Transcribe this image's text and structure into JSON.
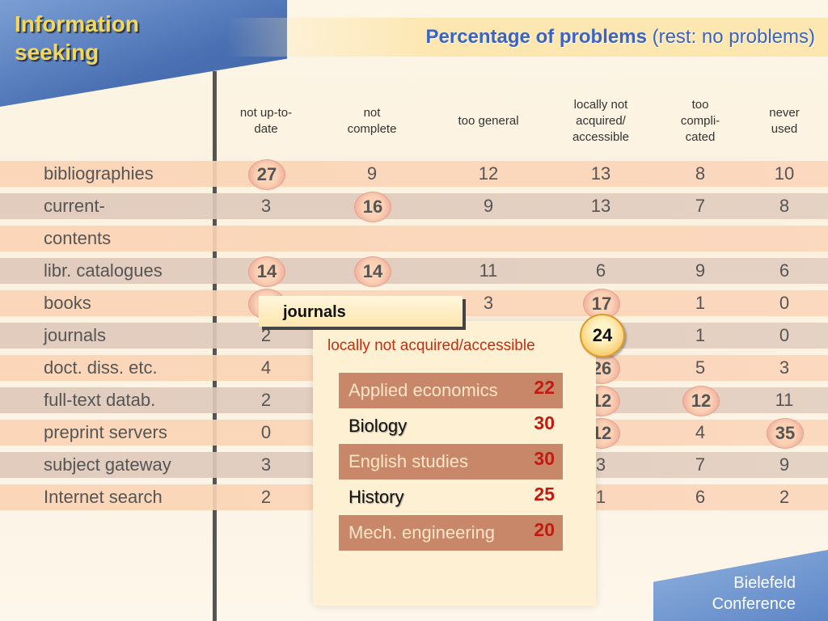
{
  "title": "Information seeking",
  "subtitle": {
    "bold": "Percentage of problems",
    "rest": "(rest: no problems)"
  },
  "columns": [
    {
      "lines": [
        "not up-to-",
        "date"
      ]
    },
    {
      "lines": [
        "not",
        "complete"
      ]
    },
    {
      "lines": [
        "too general"
      ]
    },
    {
      "lines": [
        "locally not",
        "acquired/",
        "accessible"
      ]
    },
    {
      "lines": [
        "too",
        "compli-",
        "cated"
      ]
    },
    {
      "lines": [
        "never",
        "used"
      ]
    }
  ],
  "rows": [
    {
      "label": "bibliographies",
      "values": [
        "27",
        "9",
        "12",
        "13",
        "8",
        "10"
      ],
      "highlight": [
        0
      ]
    },
    {
      "label": "current-",
      "values": [
        "3",
        "16",
        "9",
        "13",
        "7",
        "8"
      ],
      "highlight": [
        1
      ]
    },
    {
      "label": "contents",
      "values": [
        "",
        "",
        "",
        "",
        "",
        ""
      ],
      "highlight": []
    },
    {
      "label": "libr. catalogues",
      "values": [
        "14",
        "14",
        "11",
        "6",
        "9",
        "6"
      ],
      "highlight": [
        0,
        1
      ]
    },
    {
      "label": "books",
      "values": [
        "2",
        "",
        "3",
        "17",
        "1",
        "0"
      ],
      "highlight": [
        0,
        3
      ]
    },
    {
      "label": "journals",
      "values": [
        "2",
        "",
        "",
        "",
        "1",
        "0"
      ],
      "highlight": []
    },
    {
      "label": "doct. diss. etc.",
      "values": [
        "4",
        "",
        "",
        "26",
        "5",
        "3"
      ],
      "highlight": [
        3
      ]
    },
    {
      "label": "full-text datab.",
      "values": [
        "2",
        "",
        "",
        "12",
        "12",
        "11"
      ],
      "highlight": [
        3,
        4
      ]
    },
    {
      "label": "preprint servers",
      "values": [
        "0",
        "",
        "",
        "12",
        "4",
        "35"
      ],
      "highlight": [
        3,
        5
      ]
    },
    {
      "label": "subject gateway",
      "values": [
        "3",
        "",
        "",
        "3",
        "7",
        "9"
      ],
      "highlight": []
    },
    {
      "label": "Internet search",
      "values": [
        "2",
        "",
        "",
        "1",
        "6",
        "2"
      ],
      "highlight": []
    }
  ],
  "popup": {
    "tab": "journals",
    "subtitle": "locally not acquired/accessible",
    "badge": "24",
    "items": [
      {
        "label": "Applied economics",
        "value": "22"
      },
      {
        "label": "Biology",
        "value": "30"
      },
      {
        "label": "English studies",
        "value": "30"
      },
      {
        "label": "History",
        "value": "25"
      },
      {
        "label": "Mech. engineering",
        "value": "20"
      }
    ]
  },
  "logo": {
    "line1": "Bielefeld",
    "line2": "Conference"
  }
}
